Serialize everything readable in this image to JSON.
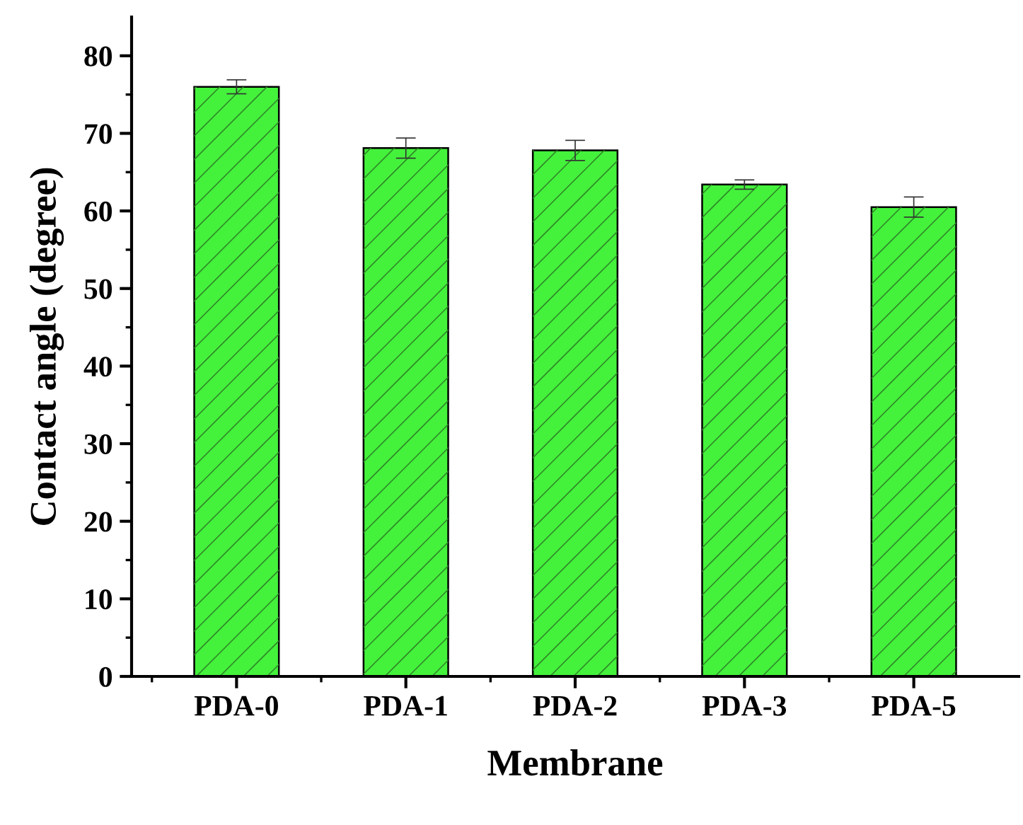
{
  "chart_data": {
    "type": "bar",
    "xlabel": "Membrane",
    "ylabel": "Contact angle (degree)",
    "categories": [
      "PDA-0",
      "PDA-1",
      "PDA-2",
      "PDA-3",
      "PDA-5"
    ],
    "values": [
      76,
      68.1,
      67.8,
      63.4,
      60.5
    ],
    "errors": [
      0.9,
      1.3,
      1.3,
      0.6,
      1.3
    ],
    "color": "#44f23c",
    "ylim": [
      0,
      85
    ],
    "yticks": [
      0,
      10,
      20,
      30,
      40,
      50,
      60,
      70,
      80
    ],
    "grid": false
  }
}
